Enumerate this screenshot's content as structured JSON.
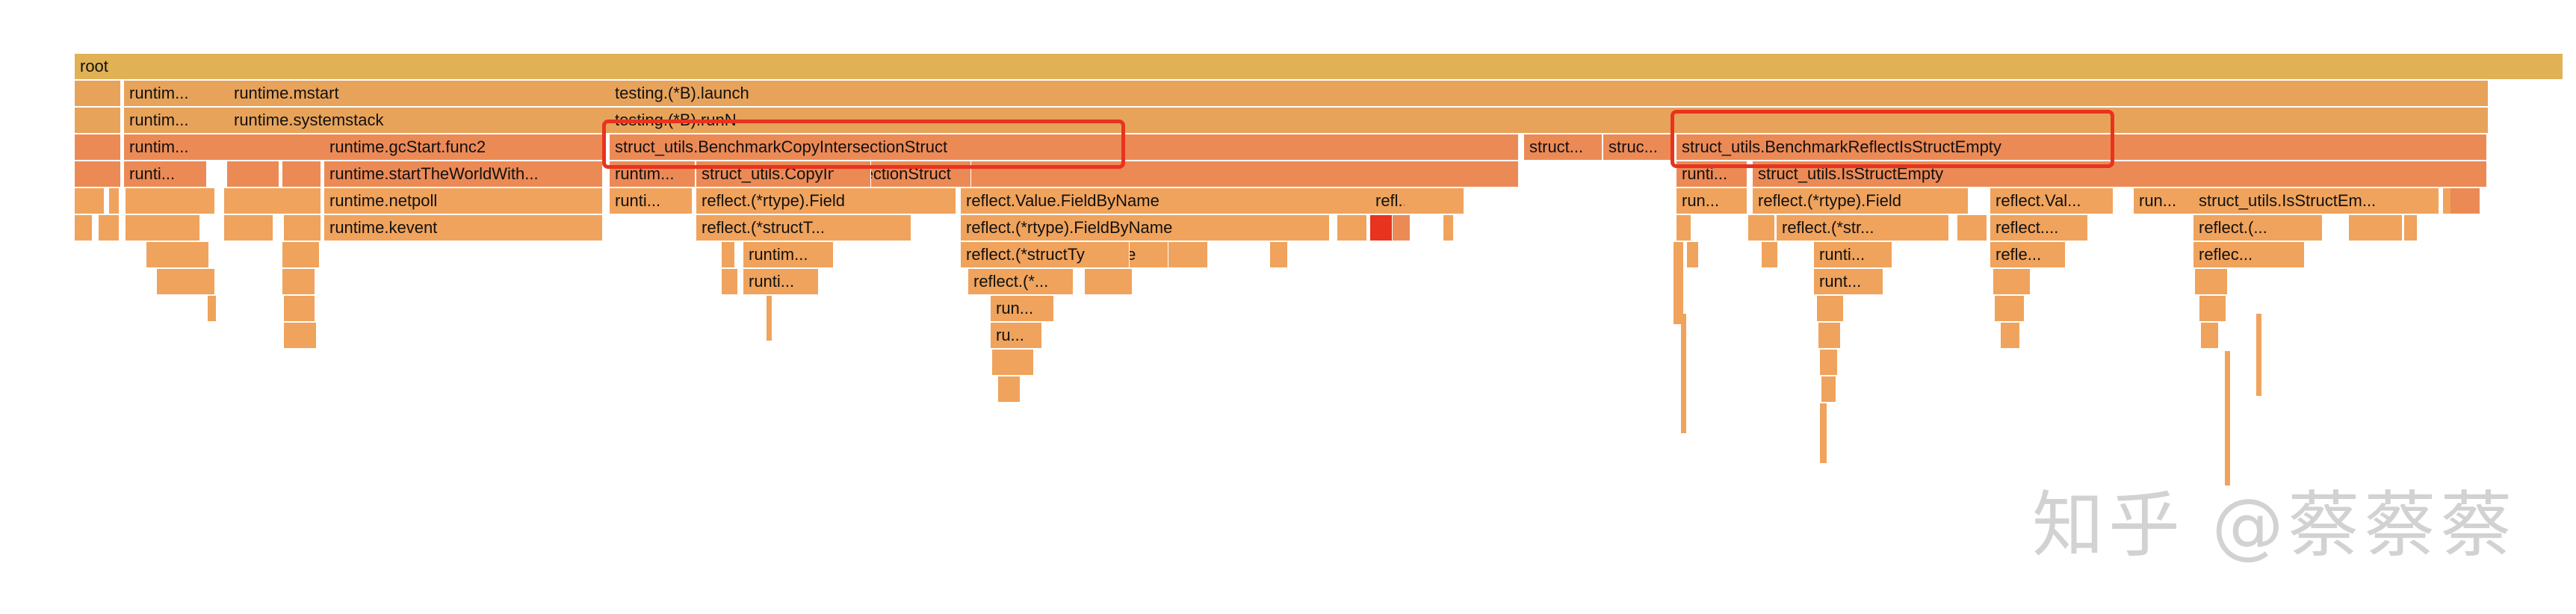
{
  "chart_data": {
    "type": "flamegraph",
    "title": "",
    "root_label": "root",
    "colors": {
      "root": "#e0b155",
      "level1": "#e8a35a",
      "level2": "#ec8a56",
      "deep": "#f0a35c",
      "highlight": "#e8331f"
    },
    "frames": [
      {
        "label": "root",
        "depth": 0
      },
      {
        "label": "runtim...",
        "depth": 1
      },
      {
        "label": "runtime.mstart",
        "depth": 1
      },
      {
        "label": "testing.(*B).launch",
        "depth": 1
      },
      {
        "label": "runtim...",
        "depth": 2
      },
      {
        "label": "runtime.systemstack",
        "depth": 2
      },
      {
        "label": "testing.(*B).runN",
        "depth": 2
      },
      {
        "label": "runtim...",
        "depth": 3
      },
      {
        "label": "runtime.gcStart.func2",
        "depth": 3
      },
      {
        "label": "struct_utils.BenchmarkCopyIntersectionStruct",
        "depth": 3
      },
      {
        "label": "struct...",
        "depth": 3
      },
      {
        "label": "struc...",
        "depth": 3
      },
      {
        "label": "struct_utils.BenchmarkReflectIsStructEmpty",
        "depth": 3
      },
      {
        "label": "runti...",
        "depth": 4
      },
      {
        "label": "runtime.startTheWorldWith...",
        "depth": 4
      },
      {
        "label": "runtim...",
        "depth": 4
      },
      {
        "label": "struct_utils.CopyIntersectionStruct",
        "depth": 4
      },
      {
        "label": "runti...",
        "depth": 4
      },
      {
        "label": "struct_utils.IsStructEmpty",
        "depth": 4
      },
      {
        "label": "runtime.netpoll",
        "depth": 5
      },
      {
        "label": "runti...",
        "depth": 5
      },
      {
        "label": "reflect.(*rtype).Field",
        "depth": 5
      },
      {
        "label": "reflect.Value.FieldByName",
        "depth": 5
      },
      {
        "label": "refl...",
        "depth": 5
      },
      {
        "label": "run...",
        "depth": 5
      },
      {
        "label": "reflect.(*rtype).Field",
        "depth": 5
      },
      {
        "label": "reflect.Val...",
        "depth": 5
      },
      {
        "label": "run...",
        "depth": 5
      },
      {
        "label": "struct_utils.IsStructEm...",
        "depth": 5
      },
      {
        "label": "runtime.kevent",
        "depth": 6
      },
      {
        "label": "reflect.(*structT...",
        "depth": 6
      },
      {
        "label": "reflect.(*rtype).FieldByName",
        "depth": 6
      },
      {
        "label": "reflect.(*str...",
        "depth": 6
      },
      {
        "label": "reflect....",
        "depth": 6
      },
      {
        "label": "reflect.(...",
        "depth": 6
      },
      {
        "label": "runtim...",
        "depth": 7
      },
      {
        "label": "reflect.(*structType).Fiel...",
        "depth": 7
      },
      {
        "label": "runti...",
        "depth": 7
      },
      {
        "label": "refle...",
        "depth": 7
      },
      {
        "label": "reflec...",
        "depth": 7
      },
      {
        "label": "runti...",
        "depth": 8
      },
      {
        "label": "reflect.(*...",
        "depth": 8
      },
      {
        "label": "runt...",
        "depth": 8
      },
      {
        "label": "run...",
        "depth": 9
      },
      {
        "label": "ru...",
        "depth": 10
      }
    ]
  },
  "watermark": "知乎 @蔡蔡蔡"
}
